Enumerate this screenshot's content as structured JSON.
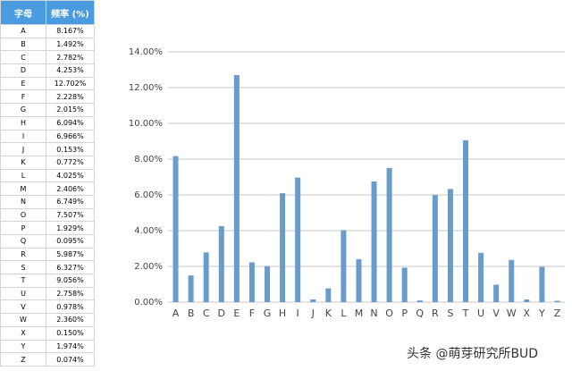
{
  "table": {
    "header": [
      "字母",
      "频率 (%)"
    ],
    "rows": [
      [
        "A",
        "8.167%"
      ],
      [
        "B",
        "1.492%"
      ],
      [
        "C",
        "2.782%"
      ],
      [
        "D",
        "4.253%"
      ],
      [
        "E",
        "12.702%"
      ],
      [
        "F",
        "2.228%"
      ],
      [
        "G",
        "2.015%"
      ],
      [
        "H",
        "6.094%"
      ],
      [
        "I",
        "6.966%"
      ],
      [
        "J",
        "0.153%"
      ],
      [
        "K",
        "0.772%"
      ],
      [
        "L",
        "4.025%"
      ],
      [
        "M",
        "2.406%"
      ],
      [
        "N",
        "6.749%"
      ],
      [
        "O",
        "7.507%"
      ],
      [
        "P",
        "1.929%"
      ],
      [
        "Q",
        "0.095%"
      ],
      [
        "R",
        "5.987%"
      ],
      [
        "S",
        "6.327%"
      ],
      [
        "T",
        "9.056%"
      ],
      [
        "U",
        "2.758%"
      ],
      [
        "V",
        "0.978%"
      ],
      [
        "W",
        "2.360%"
      ],
      [
        "X",
        "0.150%"
      ],
      [
        "Y",
        "1.974%"
      ],
      [
        "Z",
        "0.074%"
      ]
    ]
  },
  "chart_data": {
    "type": "bar",
    "categories": [
      "A",
      "B",
      "C",
      "D",
      "E",
      "F",
      "G",
      "H",
      "I",
      "J",
      "K",
      "L",
      "M",
      "N",
      "O",
      "P",
      "Q",
      "R",
      "S",
      "T",
      "U",
      "V",
      "W",
      "X",
      "Y",
      "Z"
    ],
    "values": [
      8.167,
      1.492,
      2.782,
      4.253,
      12.702,
      2.228,
      2.015,
      6.094,
      6.966,
      0.153,
      0.772,
      4.025,
      2.406,
      6.749,
      7.507,
      1.929,
      0.095,
      5.987,
      6.327,
      9.056,
      2.758,
      0.978,
      2.36,
      0.15,
      1.974,
      0.074
    ],
    "color": "#6a9bcb",
    "ylim": [
      0,
      14
    ],
    "yticks": [
      {
        "value": 0,
        "label": "0.00%"
      },
      {
        "value": 2,
        "label": "2.00%"
      },
      {
        "value": 4,
        "label": "4.00%"
      },
      {
        "value": 6,
        "label": "6.00%"
      },
      {
        "value": 8,
        "label": "8.00%"
      },
      {
        "value": 10,
        "label": "10.00%"
      },
      {
        "value": 12,
        "label": "12.00%"
      },
      {
        "value": 14,
        "label": "14.00%"
      }
    ],
    "grid": true
  },
  "watermark": "头条 @萌芽研究所BUD"
}
